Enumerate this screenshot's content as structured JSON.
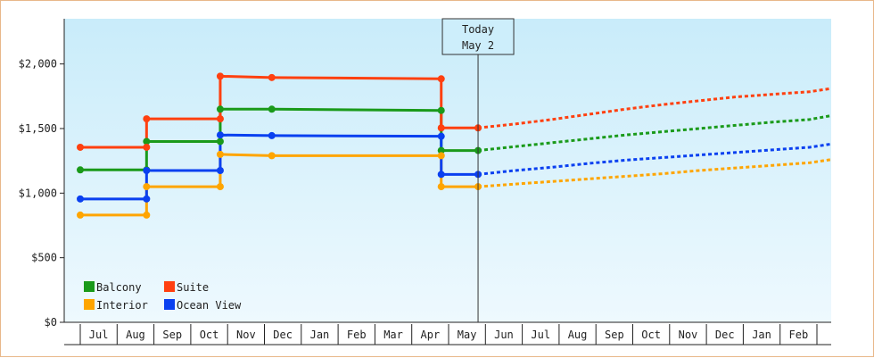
{
  "chart_data": {
    "type": "line",
    "y_ticks": [
      "$0",
      "$500",
      "$1,000",
      "$1,500",
      "$2,000"
    ],
    "y_tick_values": [
      0,
      500,
      1000,
      1500,
      2000
    ],
    "ylim": [
      0,
      2350
    ],
    "months": [
      "Jul",
      "Aug",
      "Sep",
      "Oct",
      "Nov",
      "Dec",
      "Jan",
      "Feb",
      "Mar",
      "Apr",
      "May",
      "Jun",
      "Jul",
      "Aug",
      "Sep",
      "Oct",
      "Nov",
      "Dec",
      "Jan",
      "Feb"
    ],
    "today": {
      "line1": "Today",
      "line2": "May 2",
      "x": 10.3
    },
    "legend": [
      {
        "name": "Balcony",
        "color": "#1a9a1a"
      },
      {
        "name": "Suite",
        "color": "#ff4010"
      },
      {
        "name": "Interior",
        "color": "#ffa500"
      },
      {
        "name": "Ocean View",
        "color": "#0a40f0"
      }
    ],
    "series": [
      {
        "name": "Balcony",
        "color": "#1a9a1a",
        "history": [
          [
            -0.5,
            1180
          ],
          [
            1.3,
            1180
          ],
          [
            1.3,
            1400
          ],
          [
            3.3,
            1400
          ],
          [
            3.3,
            1650
          ],
          [
            4.7,
            1650
          ],
          [
            9.3,
            1640
          ],
          [
            9.3,
            1330
          ],
          [
            10.3,
            1330
          ]
        ],
        "forecast": [
          [
            10.3,
            1330
          ],
          [
            11.3,
            1360
          ],
          [
            12.3,
            1390
          ],
          [
            13.3,
            1420
          ],
          [
            14.3,
            1450
          ],
          [
            15.3,
            1475
          ],
          [
            16.3,
            1500
          ],
          [
            17.3,
            1525
          ],
          [
            18.3,
            1550
          ],
          [
            19.3,
            1570
          ],
          [
            20.5,
            1600
          ]
        ]
      },
      {
        "name": "Suite",
        "color": "#ff4010",
        "history": [
          [
            -0.5,
            1355
          ],
          [
            1.3,
            1355
          ],
          [
            1.3,
            1575
          ],
          [
            3.3,
            1575
          ],
          [
            3.3,
            1905
          ],
          [
            4.7,
            1895
          ],
          [
            9.3,
            1885
          ],
          [
            9.3,
            1505
          ],
          [
            10.3,
            1505
          ]
        ],
        "forecast": [
          [
            10.3,
            1505
          ],
          [
            11.3,
            1535
          ],
          [
            12.3,
            1570
          ],
          [
            13.3,
            1610
          ],
          [
            14.3,
            1650
          ],
          [
            15.3,
            1685
          ],
          [
            16.3,
            1715
          ],
          [
            17.3,
            1745
          ],
          [
            18.3,
            1765
          ],
          [
            19.3,
            1785
          ],
          [
            20.5,
            1810
          ]
        ]
      },
      {
        "name": "Interior",
        "color": "#ffa500",
        "history": [
          [
            -0.5,
            830
          ],
          [
            1.3,
            830
          ],
          [
            1.3,
            1050
          ],
          [
            3.3,
            1050
          ],
          [
            3.3,
            1300
          ],
          [
            4.7,
            1290
          ],
          [
            9.3,
            1290
          ],
          [
            9.3,
            1050
          ],
          [
            10.3,
            1050
          ]
        ],
        "forecast": [
          [
            10.3,
            1050
          ],
          [
            11.3,
            1070
          ],
          [
            12.3,
            1090
          ],
          [
            13.3,
            1110
          ],
          [
            14.3,
            1130
          ],
          [
            15.3,
            1150
          ],
          [
            16.3,
            1175
          ],
          [
            17.3,
            1195
          ],
          [
            18.3,
            1215
          ],
          [
            19.3,
            1235
          ],
          [
            20.5,
            1260
          ]
        ]
      },
      {
        "name": "Ocean View",
        "color": "#0a40f0",
        "history": [
          [
            -0.5,
            955
          ],
          [
            1.3,
            955
          ],
          [
            1.3,
            1175
          ],
          [
            3.3,
            1175
          ],
          [
            3.3,
            1450
          ],
          [
            4.7,
            1445
          ],
          [
            9.3,
            1440
          ],
          [
            9.3,
            1145
          ],
          [
            10.3,
            1145
          ]
        ],
        "forecast": [
          [
            10.3,
            1145
          ],
          [
            11.3,
            1175
          ],
          [
            12.3,
            1200
          ],
          [
            13.3,
            1230
          ],
          [
            14.3,
            1255
          ],
          [
            15.3,
            1275
          ],
          [
            16.3,
            1295
          ],
          [
            17.3,
            1315
          ],
          [
            18.3,
            1335
          ],
          [
            19.3,
            1355
          ],
          [
            20.5,
            1380
          ]
        ]
      }
    ],
    "markers": [
      {
        "series": "Balcony",
        "points": [
          [
            -0.5,
            1180
          ],
          [
            1.3,
            1180
          ],
          [
            1.3,
            1400
          ],
          [
            3.3,
            1400
          ],
          [
            3.3,
            1650
          ],
          [
            4.7,
            1650
          ],
          [
            9.3,
            1640
          ],
          [
            9.3,
            1330
          ],
          [
            10.3,
            1330
          ]
        ]
      },
      {
        "series": "Suite",
        "points": [
          [
            -0.5,
            1355
          ],
          [
            1.3,
            1355
          ],
          [
            1.3,
            1575
          ],
          [
            3.3,
            1575
          ],
          [
            3.3,
            1905
          ],
          [
            4.7,
            1895
          ],
          [
            9.3,
            1885
          ],
          [
            9.3,
            1505
          ],
          [
            10.3,
            1505
          ]
        ]
      },
      {
        "series": "Interior",
        "points": [
          [
            -0.5,
            830
          ],
          [
            1.3,
            830
          ],
          [
            1.3,
            1050
          ],
          [
            3.3,
            1050
          ],
          [
            3.3,
            1300
          ],
          [
            4.7,
            1290
          ],
          [
            9.3,
            1290
          ],
          [
            9.3,
            1050
          ],
          [
            10.3,
            1050
          ]
        ]
      },
      {
        "series": "Ocean View",
        "points": [
          [
            -0.5,
            955
          ],
          [
            1.3,
            955
          ],
          [
            1.3,
            1175
          ],
          [
            3.3,
            1175
          ],
          [
            3.3,
            1450
          ],
          [
            4.7,
            1445
          ],
          [
            9.3,
            1440
          ],
          [
            9.3,
            1145
          ],
          [
            10.3,
            1145
          ]
        ]
      }
    ]
  }
}
